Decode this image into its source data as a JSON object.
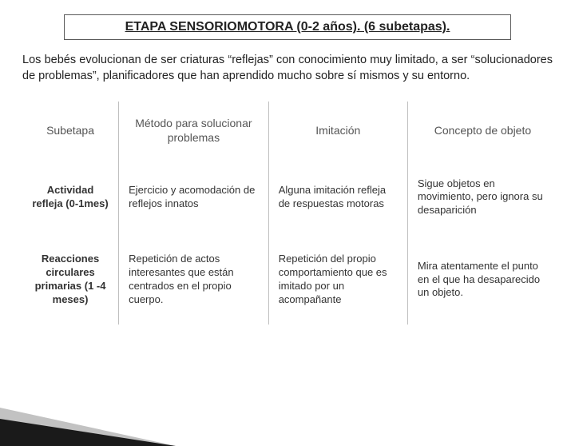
{
  "title": "ETAPA SENSORIOMOTORA (0-2 años). (6 subetapas).",
  "intro": "Los bebés evolucionan de ser criaturas “reflejas” con conocimiento muy limitado, a ser “solucionadores de problemas”, planificadores que han aprendido mucho sobre sí mismos y su entorno.",
  "headers": {
    "c1": "Subetapa",
    "c2": "Método para solucionar problemas",
    "c3": "Imitación",
    "c4": "Concepto de objeto"
  },
  "rows": [
    {
      "c1": "Actividad refleja (0-1mes)",
      "c2": "Ejercicio y acomodación de reflejos innatos",
      "c3": "Alguna imitación refleja de respuestas motoras",
      "c4": "Sigue objetos en movimiento, pero ignora su desaparición"
    },
    {
      "c1": "Reacciones circulares primarias (1 -4 meses)",
      "c2": "Repetición de actos interesantes que están centrados en el propio cuerpo.",
      "c3": "Repetición del propio comportamiento que es imitado por un acompañante",
      "c4": "Mira atentamente el punto en el que ha desaparecido un objeto."
    }
  ],
  "colors": {
    "text": "#222222",
    "border": "#bfbfbf",
    "title_border": "#595959",
    "background": "#ffffff"
  }
}
